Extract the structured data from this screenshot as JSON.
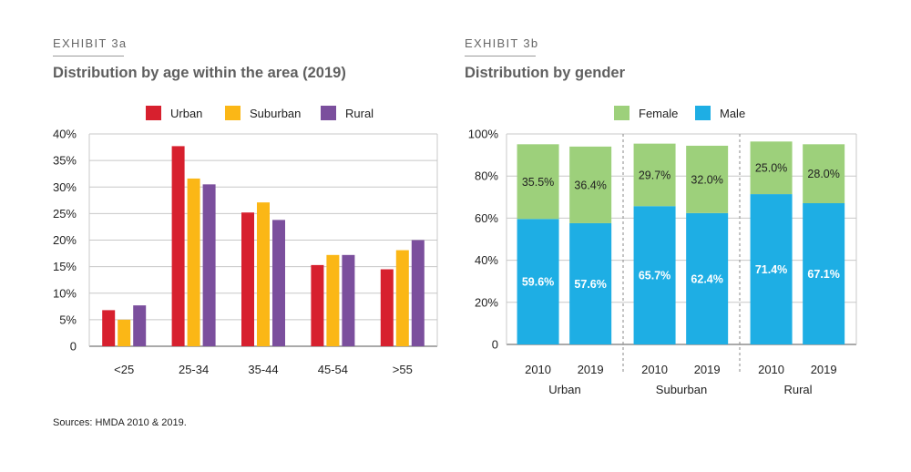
{
  "exhibit_a": {
    "label": "EXHIBIT 3a",
    "title": "Distribution by age within the area (2019)"
  },
  "exhibit_b": {
    "label": "EXHIBIT 3b",
    "title": "Distribution by gender"
  },
  "source": "Sources: HMDA 2010 & 2019.",
  "chart_data": [
    {
      "type": "bar",
      "title": "Distribution by age within the area (2019)",
      "categories": [
        "<25",
        "25-34",
        "35-44",
        "45-54",
        ">55"
      ],
      "series": [
        {
          "name": "Urban",
          "color": "#d7202e",
          "values": [
            6.8,
            37.7,
            25.2,
            15.3,
            14.5
          ]
        },
        {
          "name": "Suburban",
          "color": "#fbb716",
          "values": [
            5.0,
            31.6,
            27.1,
            17.2,
            18.1
          ]
        },
        {
          "name": "Rural",
          "color": "#7b4f9d",
          "values": [
            7.7,
            30.5,
            23.8,
            17.2,
            20.0
          ]
        }
      ],
      "yticks": [
        "0",
        "5%",
        "10%",
        "15%",
        "20%",
        "25%",
        "30%",
        "35%",
        "40%"
      ],
      "ylim": [
        0,
        40
      ],
      "legend": "top-center"
    },
    {
      "type": "bar",
      "stacked": true,
      "title": "Distribution by gender",
      "groups": [
        "Urban",
        "Suburban",
        "Rural"
      ],
      "categories": [
        "2010",
        "2019",
        "2010",
        "2019",
        "2010",
        "2019"
      ],
      "series": [
        {
          "name": "Male",
          "color": "#1eaee4",
          "values": [
            59.6,
            57.6,
            65.7,
            62.4,
            71.4,
            67.1
          ],
          "labels": [
            "59.6%",
            "57.6%",
            "65.7%",
            "62.4%",
            "71.4%",
            "67.1%"
          ]
        },
        {
          "name": "Female",
          "color": "#9dd07b",
          "values": [
            35.5,
            36.4,
            29.7,
            32.0,
            25.0,
            28.0
          ],
          "labels": [
            "35.5%",
            "36.4%",
            "29.7%",
            "32.0%",
            "25.0%",
            "28.0%"
          ]
        }
      ],
      "legend_order": [
        "Female",
        "Male"
      ],
      "yticks": [
        "0",
        "20%",
        "40%",
        "60%",
        "80%",
        "100%"
      ],
      "ylim": [
        0,
        100
      ],
      "legend": "top-center"
    }
  ]
}
